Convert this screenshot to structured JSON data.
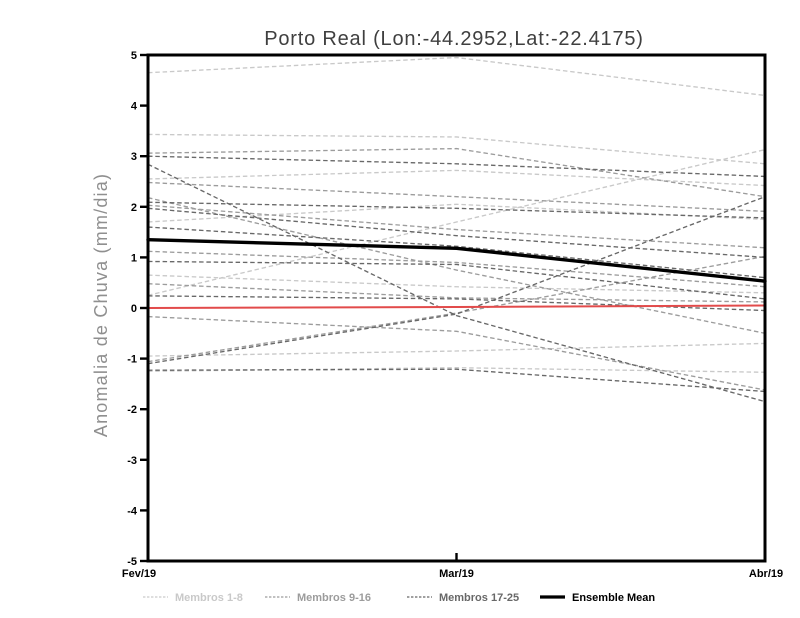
{
  "chart_data": {
    "type": "line",
    "title": "Porto Real (Lon:-44.2952,Lat:-22.4175)",
    "xlabel": "",
    "ylabel": "Anomalia de Chuva (mm/dia)",
    "x_categories": [
      "Fev/19",
      "Mar/19",
      "Abr/19"
    ],
    "ylim": [
      -5,
      5
    ],
    "yticks": [
      "5",
      "4",
      "3",
      "2",
      "1",
      "0",
      "-1",
      "-2",
      "-3",
      "-4",
      "-5"
    ],
    "ytick_values": [
      5,
      4,
      3,
      2,
      1,
      0,
      -1,
      -2,
      -3,
      -4,
      -5
    ],
    "grid": "off",
    "legend_position": "bottom",
    "legend": [
      {
        "label": "Membros 1-8",
        "color": "#c9c9c9",
        "style": "dashed"
      },
      {
        "label": "Membros 9-16",
        "color": "#9c9c9c",
        "style": "dashed"
      },
      {
        "label": "Membros 17-25",
        "color": "#686868",
        "style": "dashed"
      },
      {
        "label": "Ensemble Mean",
        "color": "#000000",
        "style": "solid"
      }
    ],
    "zero_line": {
      "name": "zero-reference",
      "color": "#e24b4b",
      "values": [
        0.0,
        0.02,
        0.05
      ]
    },
    "ensemble_mean": {
      "name": "ensemble-mean",
      "color": "#000000",
      "values": [
        1.35,
        1.18,
        0.53
      ]
    },
    "member_groups": [
      {
        "name": "Membros 1-8",
        "color": "#c9c9c9",
        "members": [
          [
            4.65,
            4.95,
            4.2
          ],
          [
            3.43,
            3.38,
            2.85
          ],
          [
            2.55,
            2.72,
            2.42
          ],
          [
            1.7,
            2.05,
            1.75
          ],
          [
            0.65,
            0.42,
            0.3
          ],
          [
            -0.95,
            -0.85,
            -0.7
          ],
          [
            0.25,
            1.7,
            3.13
          ],
          [
            -1.25,
            -1.18,
            -1.27
          ]
        ]
      },
      {
        "name": "Membros 9-16",
        "color": "#9c9c9c",
        "members": [
          [
            3.06,
            3.15,
            2.2
          ],
          [
            2.48,
            2.2,
            1.91
          ],
          [
            2.03,
            1.55,
            1.19
          ],
          [
            1.12,
            0.9,
            0.42
          ],
          [
            0.48,
            0.2,
            0.12
          ],
          [
            -0.17,
            -0.46,
            -1.62
          ],
          [
            2.18,
            0.75,
            -0.5
          ],
          [
            -1.06,
            -0.1,
            1.02
          ]
        ]
      },
      {
        "name": "Membros 17-25",
        "color": "#686868",
        "members": [
          [
            3.0,
            2.85,
            2.6
          ],
          [
            2.84,
            -0.15,
            -1.85
          ],
          [
            2.09,
            1.97,
            1.78
          ],
          [
            1.97,
            1.43,
            1.0
          ],
          [
            1.6,
            1.22,
            0.6
          ],
          [
            0.92,
            0.86,
            0.18
          ],
          [
            0.24,
            0.18,
            -0.05
          ],
          [
            -1.23,
            -1.21,
            -1.65
          ],
          [
            -1.1,
            -0.12,
            2.2
          ]
        ]
      }
    ]
  }
}
